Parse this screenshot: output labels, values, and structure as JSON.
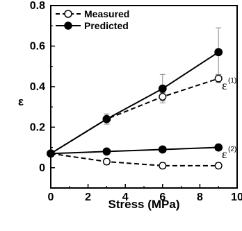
{
  "chart_data": {
    "type": "line",
    "title": "",
    "xlabel": "Stress (MPa)",
    "ylabel": "ε",
    "xlim": [
      0,
      10
    ],
    "ylim": [
      -0.1,
      0.8
    ],
    "xticks": [
      "0",
      "2",
      "4",
      "6",
      "8",
      "10"
    ],
    "yticks": [
      "0",
      "0.2",
      "0.4",
      "0.6",
      "0.8"
    ],
    "grid": false,
    "legend_position": "top-left",
    "legend": [
      "Measured",
      "Predicted"
    ],
    "annotations": [
      {
        "base": "ε",
        "sup": "(1)"
      },
      {
        "base": "ε",
        "sup": "(2)"
      }
    ],
    "series": [
      {
        "name": "Measured",
        "group": "ε(1)",
        "style": "dashed",
        "marker": "open-circle",
        "points": [
          {
            "x": 0,
            "y": 0.07
          },
          {
            "x": 3,
            "y": 0.24,
            "err": 0.025
          },
          {
            "x": 6,
            "y": 0.35,
            "err": 0.02
          },
          {
            "x": 9,
            "y": 0.44,
            "err": 0.02
          }
        ]
      },
      {
        "name": "Predicted",
        "group": "ε(1)",
        "style": "solid",
        "marker": "filled-circle",
        "points": [
          {
            "x": 0,
            "y": 0.07
          },
          {
            "x": 3,
            "y": 0.24,
            "err": 0.025
          },
          {
            "x": 6,
            "y": 0.39,
            "err": 0.07
          },
          {
            "x": 9,
            "y": 0.57,
            "err": 0.12
          }
        ]
      },
      {
        "name": "Measured",
        "group": "ε(2)",
        "style": "dashed",
        "marker": "open-circle",
        "points": [
          {
            "x": 0,
            "y": 0.07
          },
          {
            "x": 3,
            "y": 0.03,
            "err": 0.015
          },
          {
            "x": 6,
            "y": 0.01,
            "err": 0.015
          },
          {
            "x": 9,
            "y": 0.01,
            "err": 0.015
          }
        ]
      },
      {
        "name": "Predicted",
        "group": "ε(2)",
        "style": "solid",
        "marker": "filled-circle",
        "points": [
          {
            "x": 0,
            "y": 0.07
          },
          {
            "x": 3,
            "y": 0.08
          },
          {
            "x": 6,
            "y": 0.09
          },
          {
            "x": 9,
            "y": 0.1,
            "err": 0.015
          }
        ]
      }
    ]
  }
}
